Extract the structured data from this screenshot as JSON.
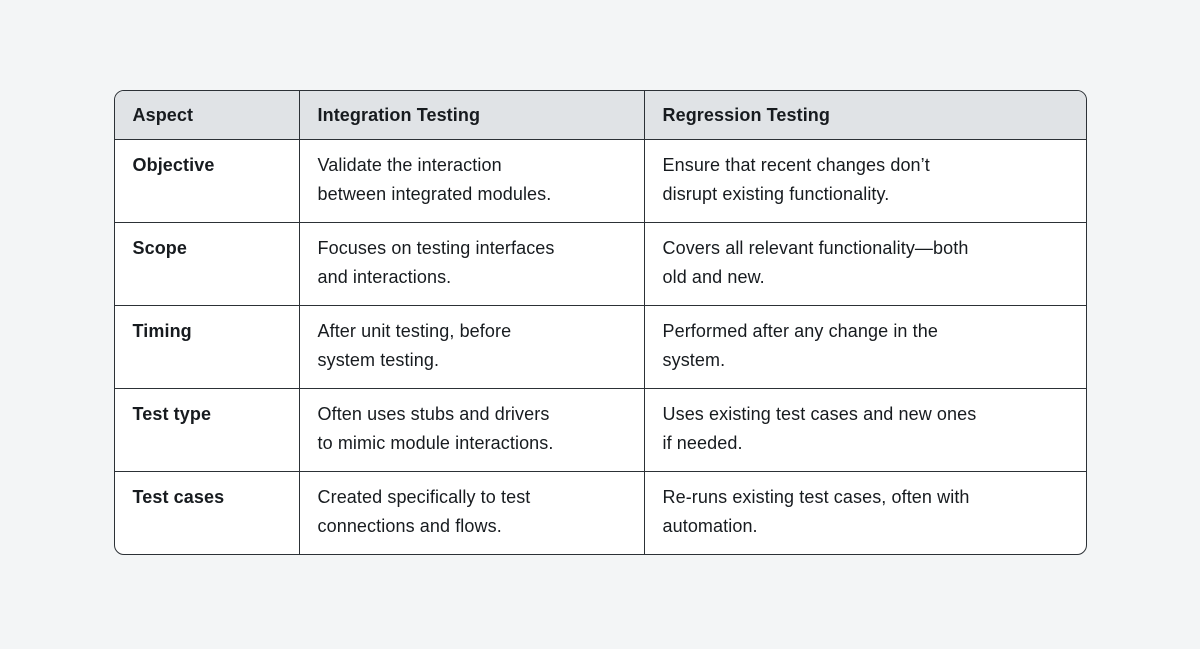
{
  "colors": {
    "page_background": "#f3f5f6",
    "header_background": "#e0e3e6",
    "border": "#2c3136",
    "text": "#171b1f",
    "cell_background": "#ffffff"
  },
  "table": {
    "headers": [
      "Aspect",
      "Integration Testing",
      "Regression Testing"
    ],
    "rows": [
      [
        "Objective",
        "Validate the interaction\nbetween integrated modules.",
        "Ensure that recent changes don’t\ndisrupt existing functionality."
      ],
      [
        "Scope",
        "Focuses on testing interfaces\nand interactions.",
        "Covers all relevant functionality—both\nold and new."
      ],
      [
        "Timing",
        "After unit testing, before\nsystem testing.",
        "Performed after any change in the\nsystem."
      ],
      [
        "Test type",
        "Often uses stubs and drivers\nto mimic module interactions.",
        "Uses existing test cases and new ones\nif needed."
      ],
      [
        "Test cases",
        "Created specifically to test\nconnections and flows.",
        "Re-runs existing test cases, often with\nautomation."
      ]
    ]
  },
  "chart_data": {
    "type": "table",
    "title": "Integration Testing vs Regression Testing comparison",
    "columns": [
      "Aspect",
      "Integration Testing",
      "Regression Testing"
    ],
    "rows": [
      [
        "Objective",
        "Validate the interaction between integrated modules.",
        "Ensure that recent changes don’t disrupt existing functionality."
      ],
      [
        "Scope",
        "Focuses on testing interfaces and interactions.",
        "Covers all relevant functionality—both old and new."
      ],
      [
        "Timing",
        "After unit testing, before system testing.",
        "Performed after any change in the system."
      ],
      [
        "Test type",
        "Often uses stubs and drivers to mimic module interactions.",
        "Uses existing test cases and new ones if needed."
      ],
      [
        "Test cases",
        "Created specifically to test connections and flows.",
        "Re-runs existing test cases, often with automation."
      ]
    ],
    "layout": {
      "header_row_shaded": true,
      "grid_lines": "all",
      "rounded_corners": true
    }
  }
}
